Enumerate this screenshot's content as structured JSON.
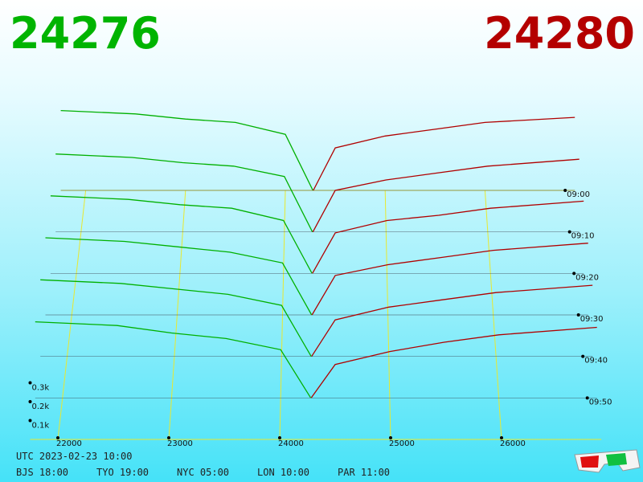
{
  "header": {
    "bid": 24276,
    "ask": 24280
  },
  "chart_data": {
    "type": "depth3d",
    "bid_color": "#00b000",
    "ask_color": "#b00000",
    "xlim": [
      21750,
      26900
    ],
    "xticks": [
      22000,
      23000,
      24000,
      25000,
      26000
    ],
    "depth_ticks": [
      {
        "value": 100,
        "label": "0.1k"
      },
      {
        "value": 200,
        "label": "0.2k"
      },
      {
        "value": 300,
        "label": "0.3k"
      }
    ],
    "time_ticks": [
      "09:00",
      "09:10",
      "09:20",
      "09:30",
      "09:40",
      "09:50"
    ],
    "bid_x": [
      21750,
      22500,
      23000,
      23500,
      24000,
      24276
    ],
    "ask_x": [
      24280,
      24500,
      25000,
      25500,
      26000,
      26900
    ],
    "slices": [
      {
        "bids": [
          470,
          450,
          420,
          400,
          330,
          0
        ],
        "asks": [
          0,
          250,
          320,
          360,
          400,
          430
        ]
      },
      {
        "bids": [
          450,
          430,
          400,
          380,
          320,
          0
        ],
        "asks": [
          0,
          240,
          300,
          340,
          380,
          420
        ]
      },
      {
        "bids": [
          440,
          420,
          390,
          370,
          300,
          0
        ],
        "asks": [
          0,
          230,
          300,
          330,
          370,
          410
        ]
      },
      {
        "bids": [
          430,
          410,
          380,
          350,
          290,
          0
        ],
        "asks": [
          0,
          220,
          280,
          320,
          360,
          400
        ]
      },
      {
        "bids": [
          420,
          400,
          370,
          340,
          280,
          0
        ],
        "asks": [
          0,
          200,
          270,
          310,
          350,
          390
        ]
      },
      {
        "bids": [
          410,
          390,
          350,
          320,
          260,
          0
        ],
        "asks": [
          0,
          180,
          250,
          300,
          340,
          380
        ]
      }
    ]
  },
  "footer": {
    "utc": "UTC 2023-02-23 10:00",
    "zones": [
      "BJS 18:00",
      "TYO 19:00",
      "NYC 05:00",
      "LON 10:00",
      "PAR 11:00"
    ]
  }
}
